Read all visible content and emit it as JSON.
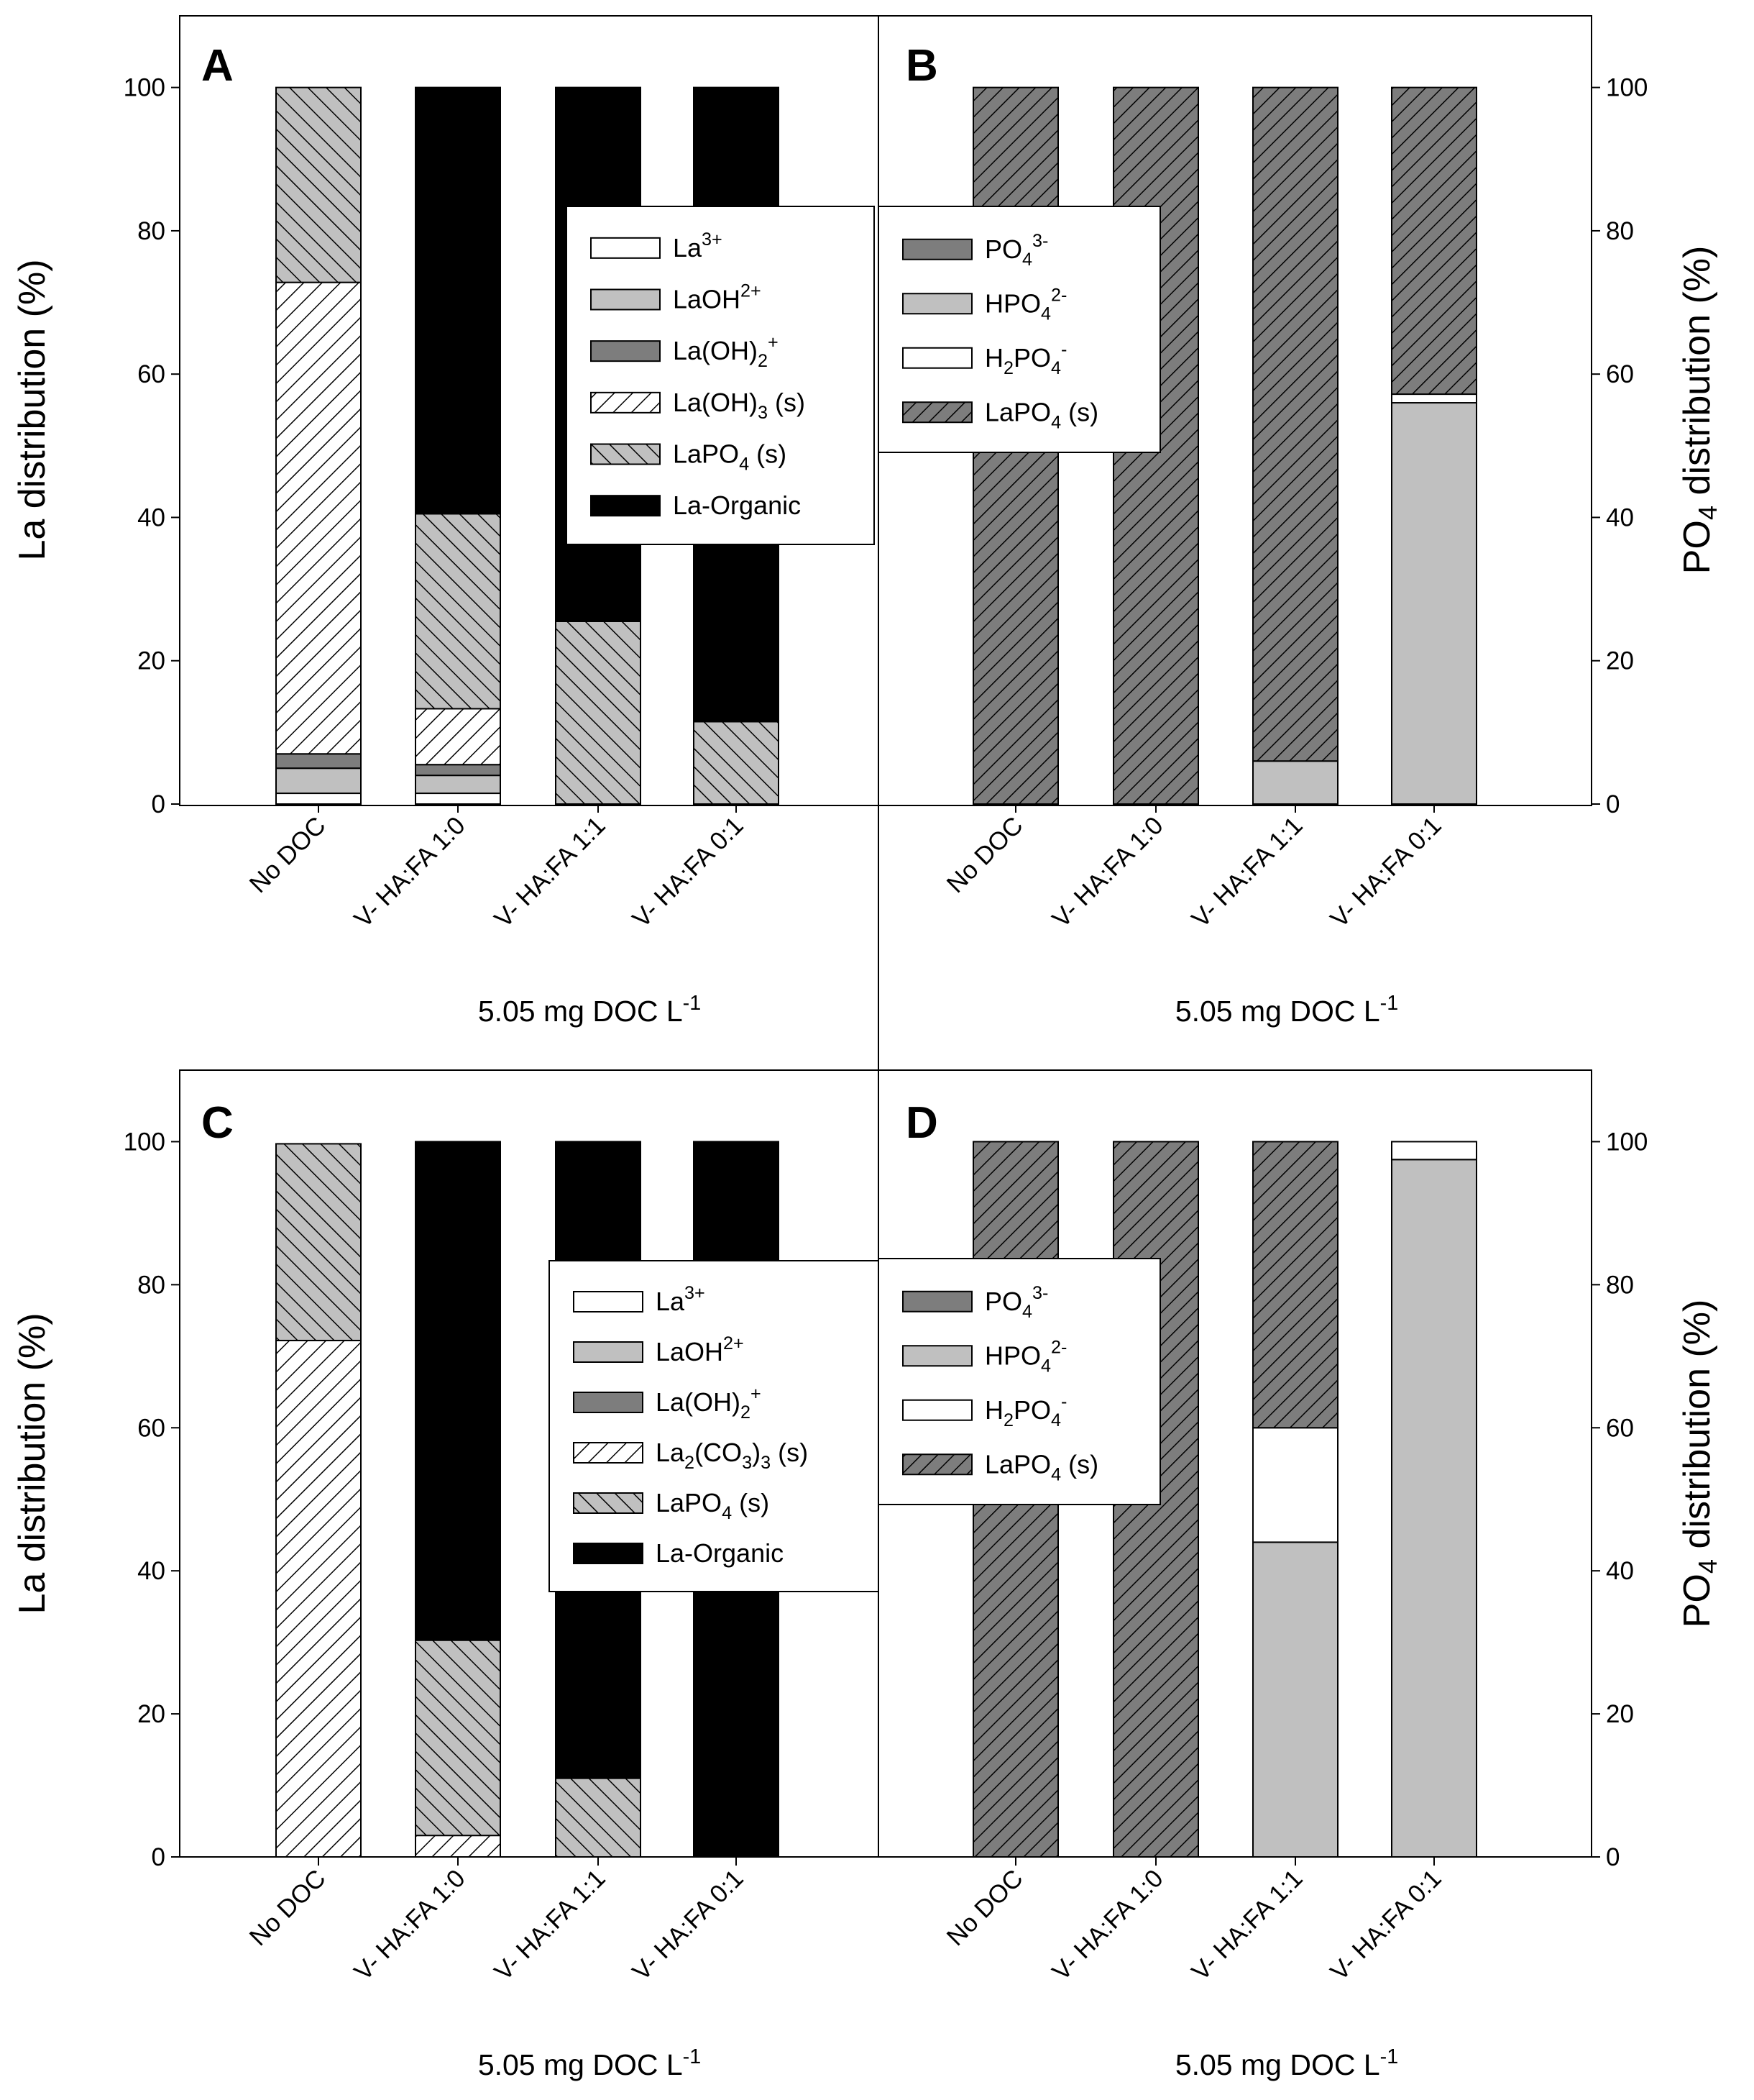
{
  "colors": {
    "white": "#ffffff",
    "light_gray": "#c0c0c0",
    "dark_gray": "#7d7d7d",
    "black": "#000000"
  },
  "chart_data": [
    {
      "type": "bar",
      "stacked": true,
      "panel_label": "A",
      "categories": [
        "No DOC",
        "V- HA:FA 1:0",
        "V- HA:FA 1:1",
        "V- HA:FA 0:1"
      ],
      "xlabel_parts": [
        "5.05 mg DOC L",
        "-1"
      ],
      "ylabel_parts": [
        "La distribution (%)"
      ],
      "ylim": [
        0,
        110
      ],
      "yticks": [
        "0",
        "20",
        "40",
        "60",
        "80",
        "100"
      ],
      "legend": [
        {
          "parts": [
            "La",
            "3+"
          ],
          "fill": "white"
        },
        {
          "parts": [
            "LaOH",
            "2+"
          ],
          "fill": "light"
        },
        {
          "parts": [
            "La(OH)",
            "2",
            "+"
          ],
          "fill": "dark"
        },
        {
          "parts": [
            "La(OH)",
            "3",
            " (s)"
          ],
          "fill": "hatch-white"
        },
        {
          "parts": [
            "LaPO",
            "4",
            " (s)"
          ],
          "fill": "hatch-back"
        },
        {
          "parts": [
            "La-Organic"
          ],
          "fill": "black"
        }
      ],
      "series": [
        {
          "name": "La3+",
          "fill": "white",
          "values": [
            1.5,
            1.5,
            0,
            0
          ]
        },
        {
          "name": "LaOH2+",
          "fill": "light",
          "values": [
            3.5,
            2.5,
            0,
            0
          ]
        },
        {
          "name": "La(OH)2+",
          "fill": "dark",
          "values": [
            2,
            1.5,
            0,
            0
          ]
        },
        {
          "name": "La(OH)3 (s)",
          "fill": "hatch-white",
          "values": [
            65.8,
            7.8,
            0,
            0
          ]
        },
        {
          "name": "LaPO4 (s)",
          "fill": "hatch-back",
          "values": [
            27.2,
            27.2,
            25.5,
            11.5
          ]
        },
        {
          "name": "La-Organic",
          "fill": "black",
          "values": [
            0,
            59.5,
            74.5,
            88.5
          ]
        }
      ]
    },
    {
      "type": "bar",
      "stacked": true,
      "panel_label": "B",
      "categories": [
        "No DOC",
        "V- HA:FA 1:0",
        "V- HA:FA 1:1",
        "V- HA:FA 0:1"
      ],
      "xlabel_parts": [
        "5.05 mg DOC L",
        "-1"
      ],
      "ylabel_parts": [
        "PO",
        "4",
        " distribution (%)"
      ],
      "ylim": [
        0,
        110
      ],
      "yticks": [
        "0",
        "20",
        "40",
        "60",
        "80",
        "100"
      ],
      "legend": [
        {
          "parts": [
            "PO",
            "4",
            "3-"
          ],
          "fill": "dark"
        },
        {
          "parts": [
            "HPO",
            "4",
            "2-"
          ],
          "fill": "light"
        },
        {
          "parts": [
            "H",
            "2",
            "PO",
            "4",
            "-"
          ],
          "fill": "white"
        },
        {
          "parts": [
            "LaPO",
            "4",
            " (s)"
          ],
          "fill": "hatch-dark"
        }
      ],
      "series": [
        {
          "name": "PO4 3-",
          "fill": "dark",
          "values": [
            0,
            0,
            0,
            0
          ]
        },
        {
          "name": "HPO4 2-",
          "fill": "light",
          "values": [
            0,
            0,
            6,
            56
          ]
        },
        {
          "name": "H2PO4 -",
          "fill": "white",
          "values": [
            0,
            0,
            0,
            1.2
          ]
        },
        {
          "name": "LaPO4 (s)",
          "fill": "hatch-dark",
          "values": [
            100,
            100,
            94,
            42.8
          ]
        }
      ]
    },
    {
      "type": "bar",
      "stacked": true,
      "panel_label": "C",
      "categories": [
        "No DOC",
        "V- HA:FA 1:0",
        "V- HA:FA 1:1",
        "V- HA:FA 0:1"
      ],
      "xlabel_parts": [
        "5.05 mg DOC L",
        "-1"
      ],
      "ylabel_parts": [
        "La distribution (%)"
      ],
      "ylim": [
        0,
        110
      ],
      "yticks": [
        "0",
        "20",
        "40",
        "60",
        "80",
        "100"
      ],
      "legend": [
        {
          "parts": [
            "La",
            "3+"
          ],
          "fill": "white"
        },
        {
          "parts": [
            "LaOH",
            "2+"
          ],
          "fill": "light"
        },
        {
          "parts": [
            "La(OH)",
            "2",
            "+"
          ],
          "fill": "dark"
        },
        {
          "parts": [
            "La",
            "2",
            "(CO",
            "3",
            ")",
            "3",
            " (s)"
          ],
          "fill": "hatch-white"
        },
        {
          "parts": [
            "LaPO",
            "4",
            " (s)"
          ],
          "fill": "hatch-back"
        },
        {
          "parts": [
            "La-Organic"
          ],
          "fill": "black"
        }
      ],
      "series": [
        {
          "name": "La3+",
          "fill": "white",
          "values": [
            0,
            0,
            0,
            0
          ]
        },
        {
          "name": "LaOH2+",
          "fill": "light",
          "values": [
            0,
            0,
            0,
            0
          ]
        },
        {
          "name": "La(OH)2+",
          "fill": "dark",
          "values": [
            0,
            0,
            0,
            0
          ]
        },
        {
          "name": "La2(CO3)3 (s)",
          "fill": "hatch-white",
          "values": [
            72.2,
            3,
            0,
            0
          ]
        },
        {
          "name": "LaPO4 (s)",
          "fill": "hatch-back",
          "values": [
            27.5,
            27.3,
            11,
            0
          ]
        },
        {
          "name": "La-Organic",
          "fill": "black",
          "values": [
            0,
            69.7,
            89,
            100
          ]
        }
      ]
    },
    {
      "type": "bar",
      "stacked": true,
      "panel_label": "D",
      "categories": [
        "No DOC",
        "V- HA:FA 1:0",
        "V- HA:FA 1:1",
        "V- HA:FA 0:1"
      ],
      "xlabel_parts": [
        "5.05 mg DOC L",
        "-1"
      ],
      "ylabel_parts": [
        "PO",
        "4",
        " distribution (%)"
      ],
      "ylim": [
        0,
        110
      ],
      "yticks": [
        "0",
        "20",
        "40",
        "60",
        "80",
        "100"
      ],
      "legend": [
        {
          "parts": [
            "PO",
            "4",
            "3-"
          ],
          "fill": "dark"
        },
        {
          "parts": [
            "HPO",
            "4",
            "2-"
          ],
          "fill": "light"
        },
        {
          "parts": [
            "H",
            "2",
            "PO",
            "4",
            "-"
          ],
          "fill": "white"
        },
        {
          "parts": [
            "LaPO",
            "4",
            " (s)"
          ],
          "fill": "hatch-dark"
        }
      ],
      "series": [
        {
          "name": "PO4 3-",
          "fill": "dark",
          "values": [
            0,
            0,
            0,
            0
          ]
        },
        {
          "name": "HPO4 2-",
          "fill": "light",
          "values": [
            0,
            0,
            44,
            97.5
          ]
        },
        {
          "name": "H2PO4 -",
          "fill": "white",
          "values": [
            0,
            0,
            16,
            2.5
          ]
        },
        {
          "name": "LaPO4 (s)",
          "fill": "hatch-dark",
          "values": [
            100,
            100,
            40,
            0
          ]
        }
      ]
    }
  ]
}
